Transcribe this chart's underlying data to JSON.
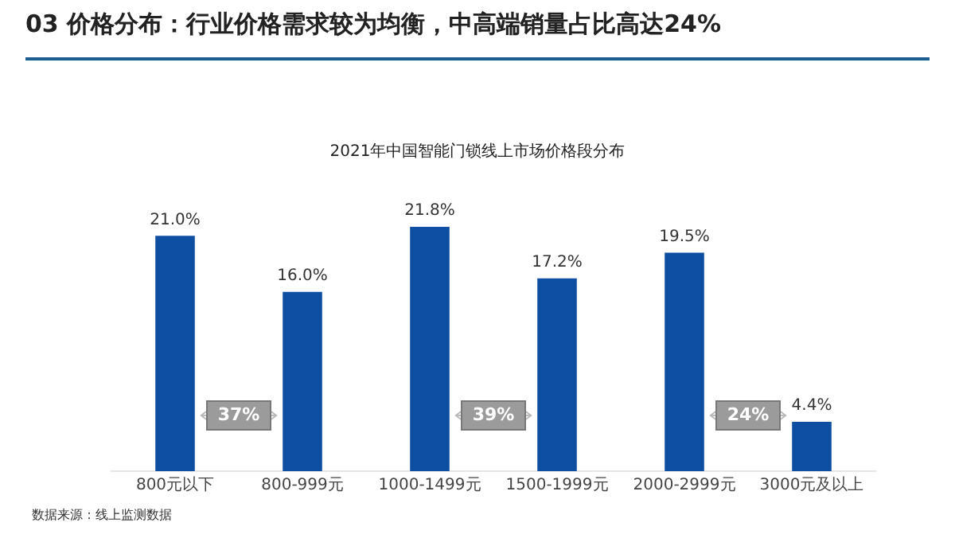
{
  "chart_data": {
    "type": "bar",
    "title": "03 价格分布：行业价格需求较为均衡，中高端销量占比高达24%",
    "subtitle": "2021年中国智能门锁线上市场价格段分布",
    "categories": [
      "800元以下",
      "800-999元",
      "1000-1499元",
      "1500-1999元",
      "2000-2999元",
      "3000元及以上"
    ],
    "values": [
      21.0,
      16.0,
      21.8,
      17.2,
      19.5,
      4.4
    ],
    "color": "#0f4fa3",
    "value_labels": [
      "21.0%",
      "16.0%",
      "21.8%",
      "17.2%",
      "19.5%",
      "4.4%"
    ],
    "annotations": [
      "37%",
      "39%",
      "24%",
      "数据来源：线上监测数据"
    ],
    "grid": false,
    "legend": false
  }
}
